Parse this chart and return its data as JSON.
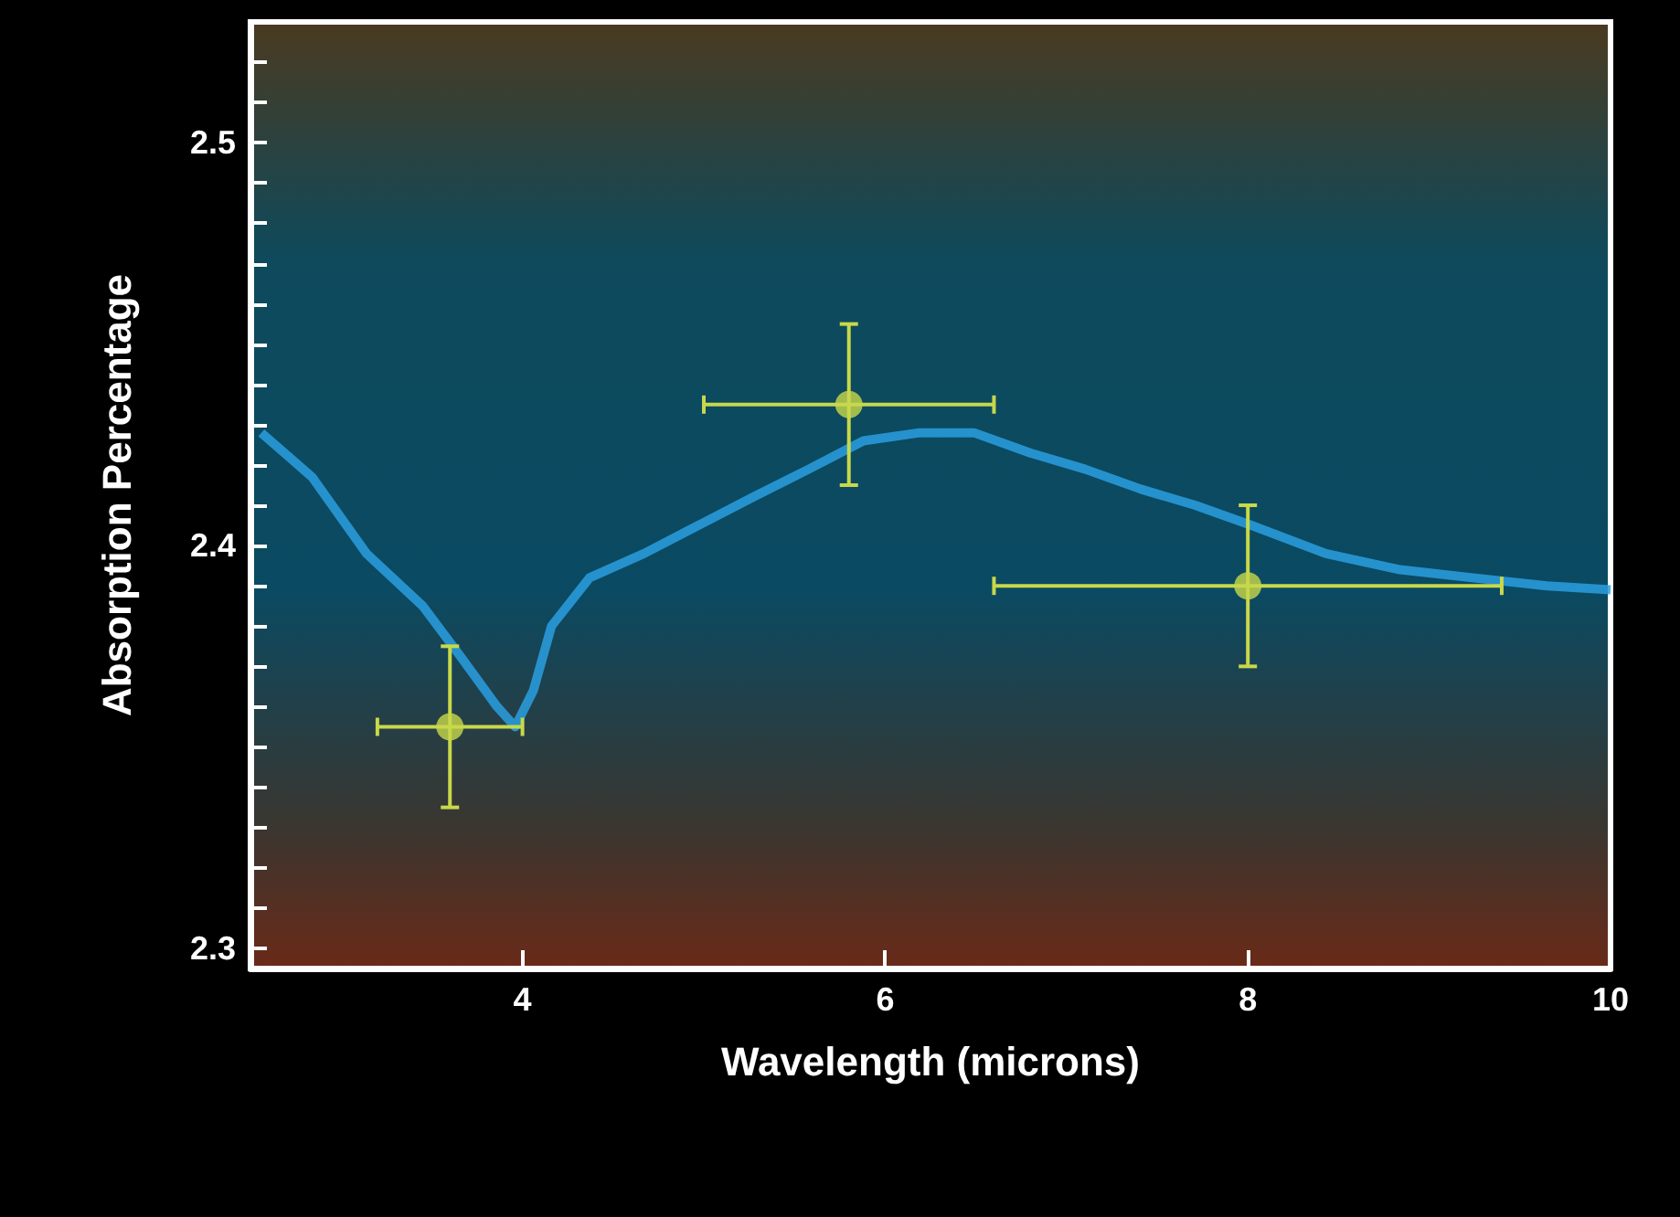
{
  "chart_data": {
    "type": "scatter",
    "xlabel": "Wavelength (microns)",
    "ylabel": "Absorption Percentage",
    "xlim": [
      2.5,
      10
    ],
    "xticks": [
      4,
      6,
      8,
      10
    ],
    "ylim": [
      2.295,
      2.53
    ],
    "yticks": [
      {
        "value": 2.3,
        "label": "2.3"
      },
      {
        "value": 2.31,
        "label": null
      },
      {
        "value": 2.32,
        "label": null
      },
      {
        "value": 2.33,
        "label": null
      },
      {
        "value": 2.34,
        "label": null
      },
      {
        "value": 2.35,
        "label": null
      },
      {
        "value": 2.36,
        "label": null
      },
      {
        "value": 2.37,
        "label": null
      },
      {
        "value": 2.38,
        "label": null
      },
      {
        "value": 2.39,
        "label": null
      },
      {
        "value": 2.4,
        "label": "2.4"
      },
      {
        "value": 2.41,
        "label": null
      },
      {
        "value": 2.42,
        "label": null
      },
      {
        "value": 2.43,
        "label": null
      },
      {
        "value": 2.44,
        "label": null
      },
      {
        "value": 2.45,
        "label": null
      },
      {
        "value": 2.46,
        "label": null
      },
      {
        "value": 2.47,
        "label": null
      },
      {
        "value": 2.48,
        "label": null
      },
      {
        "value": 2.49,
        "label": null
      },
      {
        "value": 2.5,
        "label": "2.5"
      },
      {
        "value": 2.51,
        "label": null
      },
      {
        "value": 2.52,
        "label": null
      }
    ],
    "grid": false,
    "series": [
      {
        "type": "line",
        "color": "#2a9fe0",
        "x": [
          2.56,
          2.84,
          3.14,
          3.45,
          3.65,
          3.86,
          3.96,
          4.06,
          4.16,
          4.37,
          4.67,
          4.97,
          5.27,
          5.58,
          5.88,
          6.19,
          6.49,
          6.8,
          7.1,
          7.41,
          7.71,
          8.02,
          8.43,
          8.84,
          9.24,
          9.65,
          10.0
        ],
        "values": [
          2.428,
          2.417,
          2.398,
          2.385,
          2.373,
          2.36,
          2.355,
          2.364,
          2.38,
          2.392,
          2.398,
          2.405,
          2.412,
          2.419,
          2.426,
          2.428,
          2.428,
          2.423,
          2.419,
          2.414,
          2.41,
          2.405,
          2.398,
          2.394,
          2.392,
          2.39,
          2.389
        ]
      },
      {
        "color": "#c8d84a",
        "marker": "circle",
        "x": [
          3.6,
          5.8,
          8.0
        ],
        "values": [
          2.355,
          2.435,
          2.39
        ],
        "errors": [
          0.02,
          0.02,
          0.02
        ],
        "xerrors": [
          [
            3.2,
            4.0
          ],
          [
            5.0,
            6.6
          ],
          [
            6.6,
            9.4
          ]
        ]
      }
    ]
  }
}
